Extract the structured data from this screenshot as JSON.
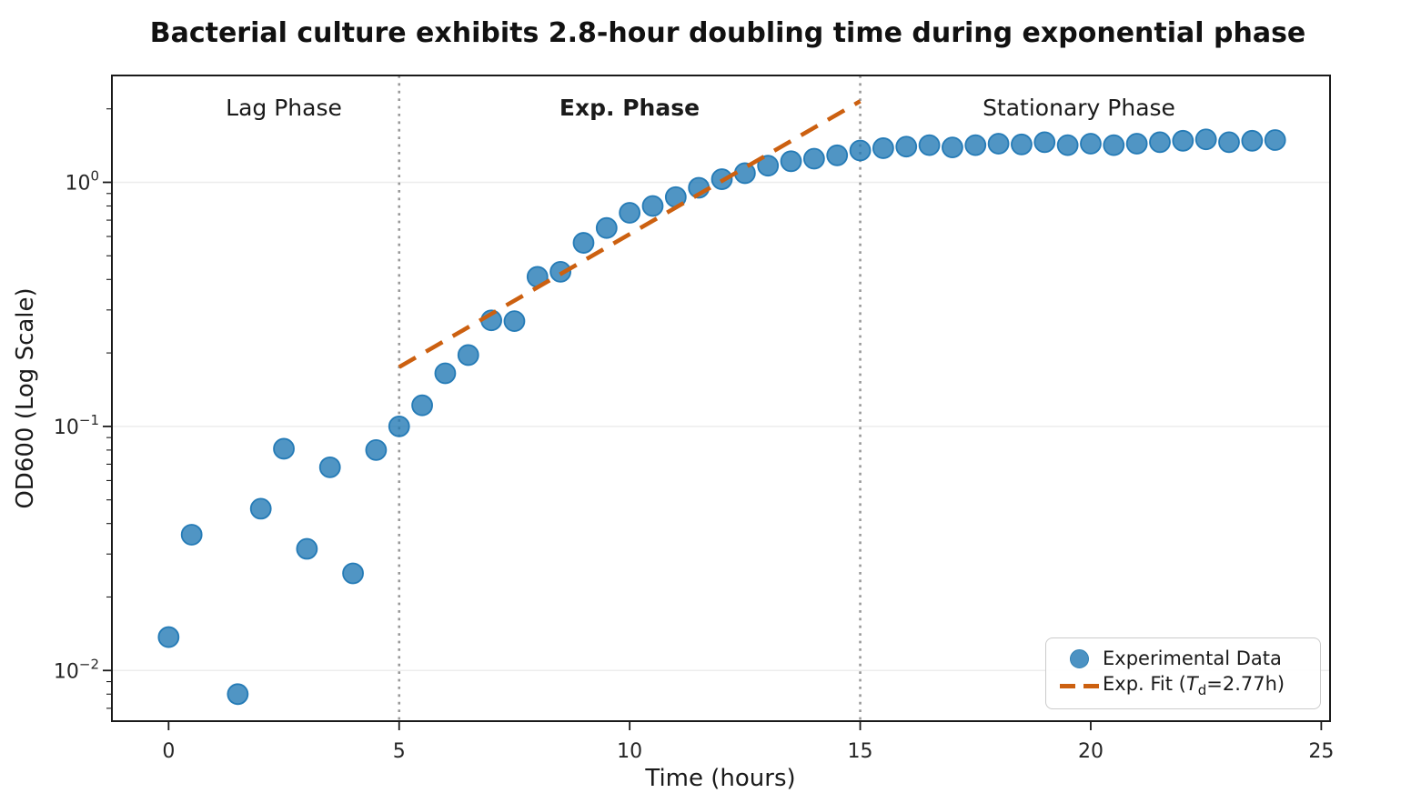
{
  "figure": {
    "background": "#ffffff"
  },
  "chart_data": {
    "type": "scatter",
    "title": "Bacterial culture exhibits 2.8-hour doubling time during exponential phase",
    "xlabel": "Time (hours)",
    "ylabel": "OD600 (Log Scale)",
    "y_scale": "log",
    "x_ticks": [
      0,
      5,
      10,
      15,
      20,
      25
    ],
    "y_ticks": [
      1,
      0.1,
      0.01
    ],
    "xlim": [
      -1.23,
      25.19
    ],
    "ylim": [
      0.0062,
      2.74
    ],
    "grid": "horizontal-major",
    "series": [
      {
        "name": "Experimental Data",
        "type": "scatter",
        "color": "#1f77b4",
        "points": [
          [
            0,
            0.0137
          ],
          [
            0.5,
            0.036
          ],
          [
            1.5,
            0.008
          ],
          [
            2,
            0.046
          ],
          [
            2.5,
            0.081
          ],
          [
            3,
            0.0315
          ],
          [
            3.5,
            0.068
          ],
          [
            4,
            0.025
          ],
          [
            4.5,
            0.08
          ],
          [
            5,
            0.1
          ],
          [
            5.5,
            0.122
          ],
          [
            6,
            0.165
          ],
          [
            6.5,
            0.196
          ],
          [
            7,
            0.272
          ],
          [
            7.5,
            0.27
          ],
          [
            8,
            0.41
          ],
          [
            8.5,
            0.43
          ],
          [
            9,
            0.565
          ],
          [
            9.5,
            0.65
          ],
          [
            10,
            0.75
          ],
          [
            10.5,
            0.8
          ],
          [
            11,
            0.87
          ],
          [
            11.5,
            0.95
          ],
          [
            12,
            1.03
          ],
          [
            12.5,
            1.09
          ],
          [
            13,
            1.17
          ],
          [
            13.5,
            1.22
          ],
          [
            14,
            1.25
          ],
          [
            14.5,
            1.29
          ],
          [
            15,
            1.35
          ],
          [
            15.5,
            1.38
          ],
          [
            16,
            1.4
          ],
          [
            16.5,
            1.42
          ],
          [
            17,
            1.39
          ],
          [
            17.5,
            1.42
          ],
          [
            18,
            1.44
          ],
          [
            18.5,
            1.43
          ],
          [
            19,
            1.46
          ],
          [
            19.5,
            1.42
          ],
          [
            20,
            1.44
          ],
          [
            20.5,
            1.42
          ],
          [
            21,
            1.44
          ],
          [
            21.5,
            1.46
          ],
          [
            22,
            1.48
          ],
          [
            22.5,
            1.5
          ],
          [
            23,
            1.46
          ],
          [
            23.5,
            1.48
          ],
          [
            24,
            1.49
          ]
        ]
      },
      {
        "name": "Exp. Fit (Td=2.77h)",
        "type": "line",
        "style": "dashed",
        "color": "#cc6010",
        "doubling_time_hours": 2.77,
        "points": [
          [
            5,
            0.175
          ],
          [
            15,
            2.15
          ]
        ]
      }
    ],
    "vlines": [
      {
        "x": 5,
        "style": "dotted",
        "color": "#999999"
      },
      {
        "x": 15,
        "style": "dotted",
        "color": "#999999"
      }
    ],
    "annotations": [
      {
        "label": "Lag Phase",
        "x": 2.5,
        "y": 2.0,
        "color": "#666666",
        "bold": false
      },
      {
        "label": "Exp. Phase",
        "x": 10,
        "y": 2.0,
        "color": "#cc6010",
        "bold": true
      },
      {
        "label": "Stationary Phase",
        "x": 19.75,
        "y": 2.0,
        "color": "#666666",
        "bold": false
      }
    ],
    "legend": {
      "position": "lower right",
      "entries": [
        {
          "label": "Experimental Data",
          "marker": "circle"
        },
        {
          "label": "Exp. Fit (Td=2.77h)",
          "label_prefix": "Exp. Fit (",
          "label_var": "T",
          "label_var_sub": "d",
          "label_suffix": "=2.77h)",
          "marker": "dashed-line"
        }
      ]
    }
  }
}
